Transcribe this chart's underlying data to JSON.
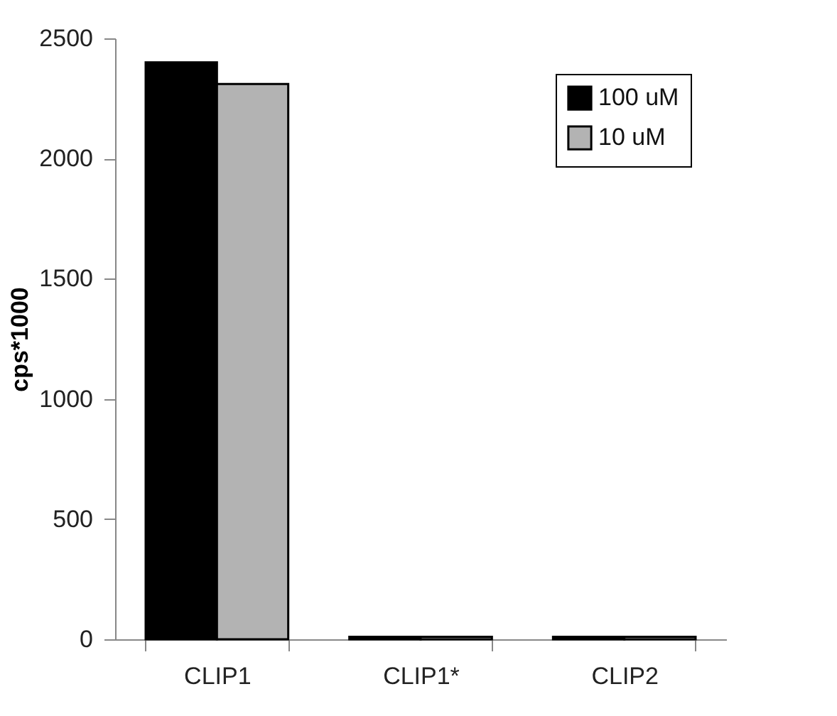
{
  "chart_data": {
    "type": "bar",
    "ylabel": "cps*1000",
    "categories": [
      "CLIP1",
      "CLIP1*",
      "CLIP2"
    ],
    "series": [
      {
        "name": "100 uM",
        "color": "#000000",
        "values": [
          2400,
          10,
          10
        ]
      },
      {
        "name": "10 uM",
        "color": "#b3b3b3",
        "values": [
          2310,
          10,
          10
        ]
      }
    ],
    "ylim": [
      0,
      2500
    ],
    "yticks": [
      0,
      500,
      1000,
      1500,
      2000,
      2500
    ],
    "grid": false,
    "legend": "top right"
  }
}
